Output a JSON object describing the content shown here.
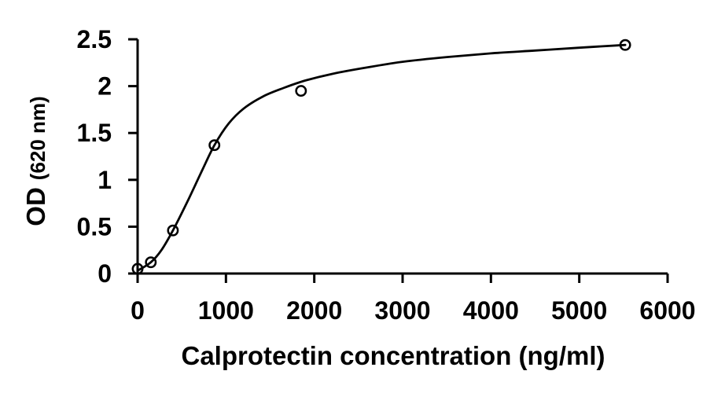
{
  "figure": {
    "background": "#ffffff",
    "ink_color": "#000000"
  },
  "chart_data": {
    "type": "scatter",
    "title": "",
    "xlabel": "Calprotectin concentration (ng/ml)",
    "ylabel": "OD (620 nm)",
    "ylabel_parts": {
      "main": "OD",
      "sub": "(620 nm)"
    },
    "xlim": [
      0,
      6000
    ],
    "ylim": [
      0,
      2.5
    ],
    "x_ticks": [
      0,
      1000,
      2000,
      3000,
      4000,
      5000,
      6000
    ],
    "y_ticks": [
      0,
      0.5,
      1,
      1.5,
      2,
      2.5
    ],
    "grid": false,
    "legend": false,
    "series": [
      {
        "name": "standard-points",
        "type": "scatter",
        "marker": "open-circle",
        "color": "#000000",
        "points": [
          [
            0,
            0.05
          ],
          [
            150,
            0.12
          ],
          [
            400,
            0.46
          ],
          [
            870,
            1.37
          ],
          [
            1850,
            1.95
          ],
          [
            5520,
            2.44
          ]
        ]
      },
      {
        "name": "fitted-curve",
        "type": "line",
        "color": "#000000",
        "points": [
          [
            0,
            0.03
          ],
          [
            150,
            0.12
          ],
          [
            270,
            0.25
          ],
          [
            400,
            0.46
          ],
          [
            560,
            0.76
          ],
          [
            730,
            1.1
          ],
          [
            870,
            1.37
          ],
          [
            1030,
            1.6
          ],
          [
            1200,
            1.76
          ],
          [
            1420,
            1.89
          ],
          [
            1650,
            1.98
          ],
          [
            1900,
            2.06
          ],
          [
            2200,
            2.13
          ],
          [
            2600,
            2.2
          ],
          [
            3000,
            2.26
          ],
          [
            3500,
            2.31
          ],
          [
            4000,
            2.35
          ],
          [
            4500,
            2.38
          ],
          [
            5000,
            2.41
          ],
          [
            5520,
            2.44
          ]
        ]
      }
    ]
  }
}
